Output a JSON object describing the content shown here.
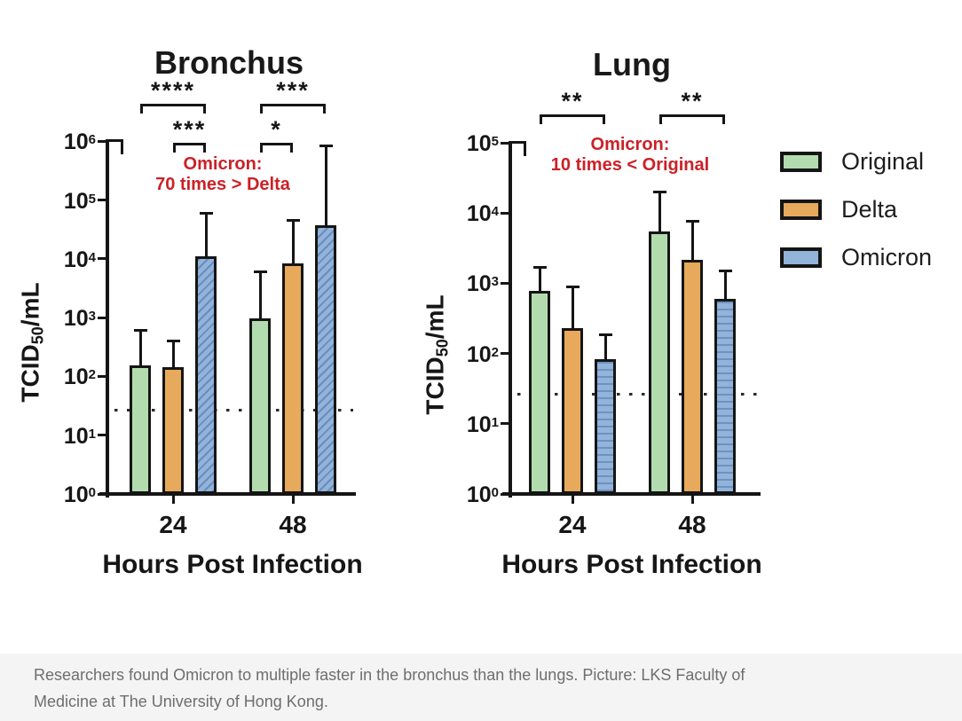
{
  "figure": {
    "legend": {
      "items": [
        {
          "label": "Original",
          "color": "#b3dcae",
          "pattern": "solid"
        },
        {
          "label": "Delta",
          "color": "#e7a95c",
          "pattern": "solid"
        },
        {
          "label": "Omicron",
          "color": "#92b3da",
          "pattern": "striped"
        }
      ]
    },
    "caption": {
      "line1": "Researchers found Omicron to multiple faster in the bronchus than the lungs. Picture: LKS Faculty of",
      "line2": "Medicine at The University of Hong Kong.",
      "background": "#f4f4f4",
      "text_color": "#6e6e6e"
    },
    "colors": {
      "axis": "#151515",
      "significance_red": "#cb2127"
    }
  },
  "chart_data": [
    {
      "type": "bar",
      "title": "Bronchus",
      "xlabel": "Hours Post Infection",
      "ylabel": "TCID50/mL",
      "y_scale": "log10",
      "ylim": [
        1,
        1000000
      ],
      "y_tick_exponents": [
        0,
        1,
        2,
        3,
        4,
        5,
        6
      ],
      "categories": [
        "24",
        "48"
      ],
      "detection_limit_line": 27,
      "series": [
        {
          "name": "Original",
          "color": "#b3dcae",
          "pattern": "solid",
          "values": [
            150,
            950
          ],
          "error_up": [
            620,
            6200
          ]
        },
        {
          "name": "Delta",
          "color": "#e7a95c",
          "pattern": "solid",
          "values": [
            140,
            8000
          ],
          "error_up": [
            400,
            45000
          ]
        },
        {
          "name": "Omicron",
          "color": "#92b3da",
          "pattern": "diagonal-stripes",
          "values": [
            10500,
            36000
          ],
          "error_up": [
            60000,
            850000
          ]
        }
      ],
      "significance": [
        {
          "stars": "****",
          "category": "24",
          "from": "Original",
          "to": "Omicron",
          "tier": "outer"
        },
        {
          "stars": "***",
          "category": "24",
          "from": "Delta",
          "to": "Omicron",
          "tier": "inner"
        },
        {
          "stars": "***",
          "category": "48",
          "from": "Original",
          "to": "Omicron",
          "tier": "outer"
        },
        {
          "stars": "*",
          "category": "48",
          "from": "Original",
          "to": "Delta",
          "tier": "inner"
        }
      ],
      "annotation": {
        "lines": [
          "Omicron:",
          "70 times > Delta"
        ],
        "color": "#cb2127"
      }
    },
    {
      "type": "bar",
      "title": "Lung",
      "xlabel": "Hours Post Infection",
      "ylabel": "TCID50/mL",
      "y_scale": "log10",
      "ylim": [
        1,
        100000
      ],
      "y_tick_exponents": [
        0,
        1,
        2,
        3,
        4,
        5
      ],
      "categories": [
        "24",
        "48"
      ],
      "detection_limit_line": 27,
      "series": [
        {
          "name": "Original",
          "color": "#b3dcae",
          "pattern": "solid",
          "values": [
            750,
            5300
          ],
          "error_up": [
            1700,
            20000
          ]
        },
        {
          "name": "Delta",
          "color": "#e7a95c",
          "pattern": "solid",
          "values": [
            220,
            2100
          ],
          "error_up": [
            900,
            7800
          ]
        },
        {
          "name": "Omicron",
          "color": "#92b3da",
          "pattern": "horizontal-stripes",
          "values": [
            80,
            580
          ],
          "error_up": [
            190,
            1500
          ]
        }
      ],
      "significance": [
        {
          "stars": "**",
          "category": "24",
          "from": "Original",
          "to": "Omicron",
          "tier": "outer"
        },
        {
          "stars": "**",
          "category": "48",
          "from": "Original",
          "to": "Omicron",
          "tier": "outer"
        }
      ],
      "annotation": {
        "lines": [
          "Omicron:",
          "10 times < Original"
        ],
        "color": "#cb2127"
      }
    }
  ]
}
